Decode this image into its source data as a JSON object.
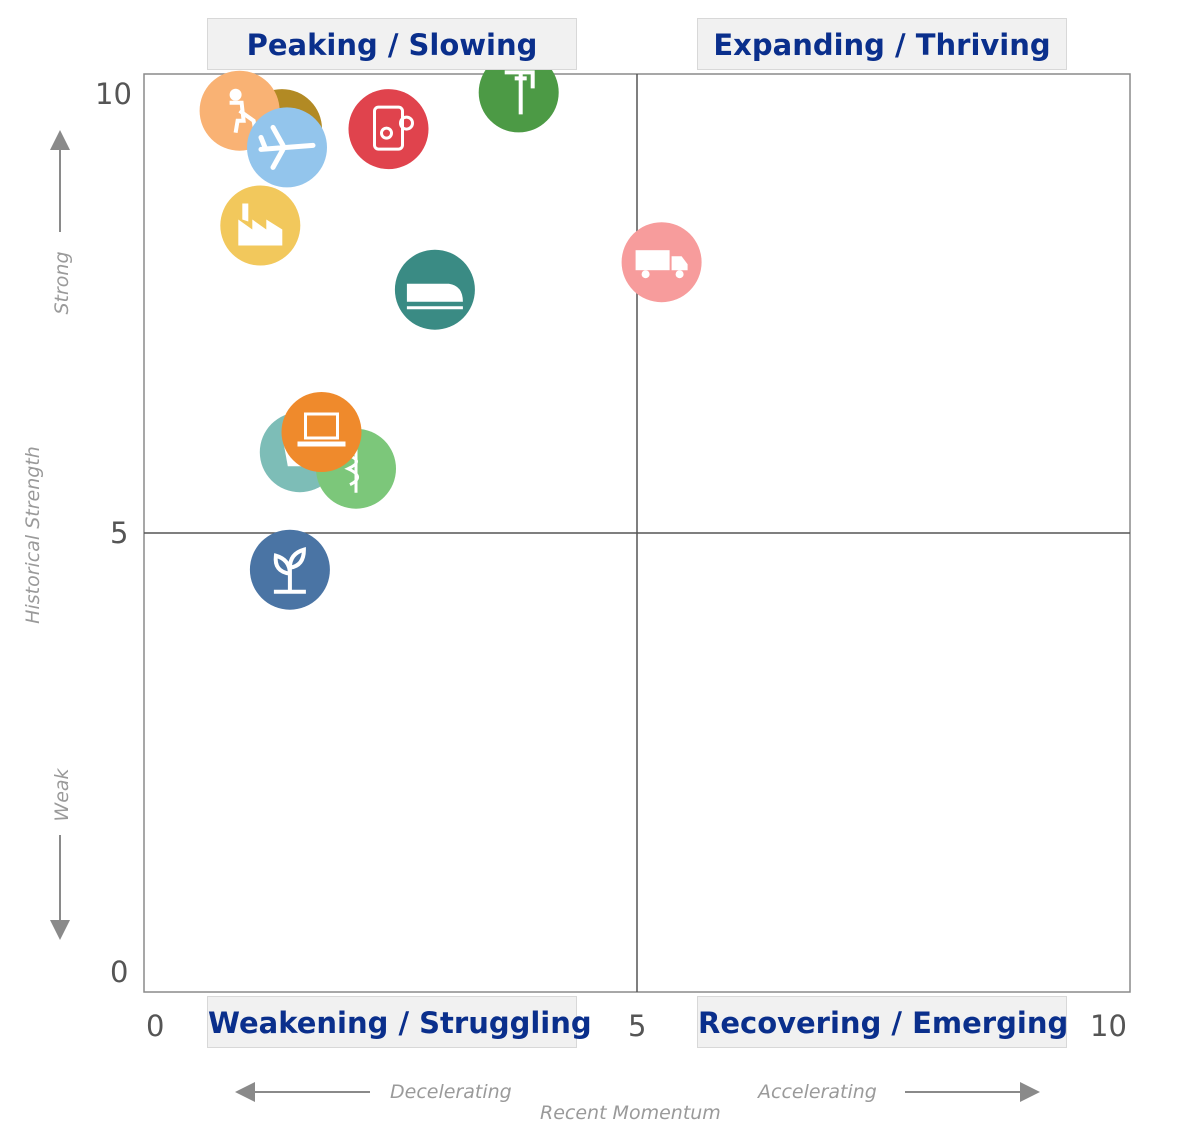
{
  "chart_data": {
    "type": "scatter",
    "title": "",
    "xlabel": "Recent Momentum",
    "ylabel": "Historical Strength",
    "xlim": [
      0,
      10
    ],
    "ylim": [
      0,
      10
    ],
    "x_ticks": [
      "0",
      "5",
      "10"
    ],
    "y_ticks": [
      "0",
      "5",
      "10"
    ],
    "x_left_caption": "Decelerating",
    "x_right_caption": "Accelerating",
    "y_top_caption": "Strong",
    "y_bottom_caption": "Weak",
    "quadrants": {
      "top_left": "Peaking / Slowing",
      "top_right": "Expanding / Thriving",
      "bottom_left": "Weakening / Struggling",
      "bottom_right": "Recovering / Emerging"
    },
    "points": [
      {
        "icon": "crane-icon",
        "x": 3.8,
        "y": 9.8,
        "color": "#4c9a45"
      },
      {
        "icon": "mining-icon",
        "x": 1.4,
        "y": 9.4,
        "color": "#b28a24"
      },
      {
        "icon": "worker-icon",
        "x": 0.97,
        "y": 9.6,
        "color": "#f9b274"
      },
      {
        "icon": "airplane-icon",
        "x": 1.45,
        "y": 9.2,
        "color": "#93c5ec"
      },
      {
        "icon": "tablet-gears-icon",
        "x": 2.48,
        "y": 9.4,
        "color": "#e0434d"
      },
      {
        "icon": "factory-icon",
        "x": 1.18,
        "y": 8.35,
        "color": "#f2c85c"
      },
      {
        "icon": "truck-icon",
        "x": 5.25,
        "y": 7.95,
        "color": "#f79c9c"
      },
      {
        "icon": "train-icon",
        "x": 2.95,
        "y": 7.65,
        "color": "#3a8b84"
      },
      {
        "icon": "retail-icon",
        "x": 1.58,
        "y": 5.88,
        "color": "#7dbdb7"
      },
      {
        "icon": "medical-icon",
        "x": 2.15,
        "y": 5.7,
        "color": "#7cc77a"
      },
      {
        "icon": "laptop-icon",
        "x": 1.8,
        "y": 6.1,
        "color": "#ef8a2c"
      },
      {
        "icon": "plant-icon",
        "x": 1.48,
        "y": 4.6,
        "color": "#4a74a4"
      }
    ]
  }
}
